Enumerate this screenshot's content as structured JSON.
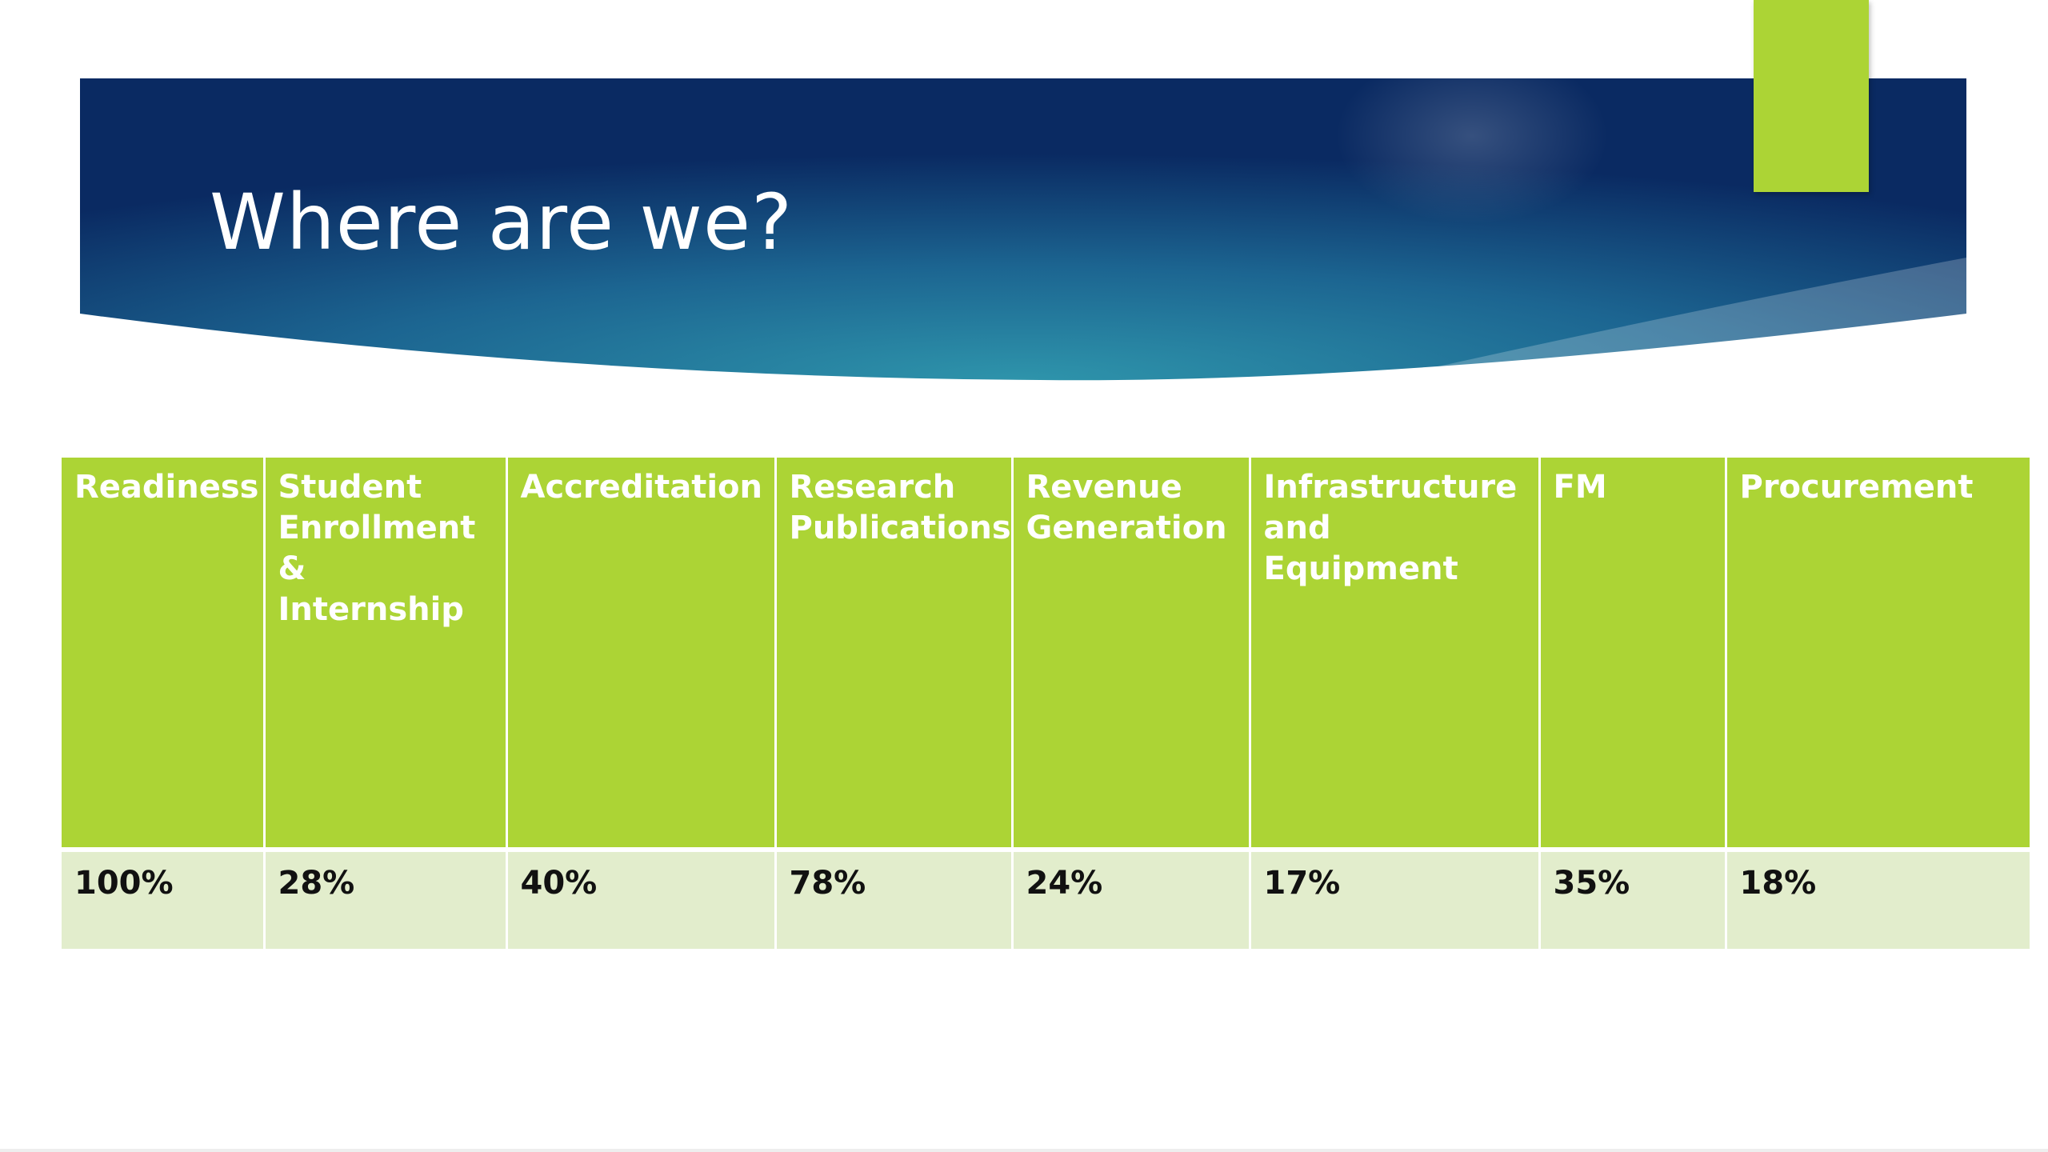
{
  "slide": {
    "title": "Where are we?"
  },
  "colors": {
    "banner_dark": "#0a2a62",
    "banner_light": "#2e8fa8",
    "accent_green": "#acd435",
    "cell_light_green": "#e2edcc"
  },
  "table": {
    "headers": [
      "Readiness",
      "Student Enrollment & Internship",
      "Accreditation",
      "Research Publications",
      "Revenue Generation",
      "Infrastructure and Equipment",
      "FM",
      "Procurement"
    ],
    "values": [
      "100%",
      "28%",
      "40%",
      "78%",
      "24%",
      "17%",
      "35%",
      "18%"
    ]
  }
}
